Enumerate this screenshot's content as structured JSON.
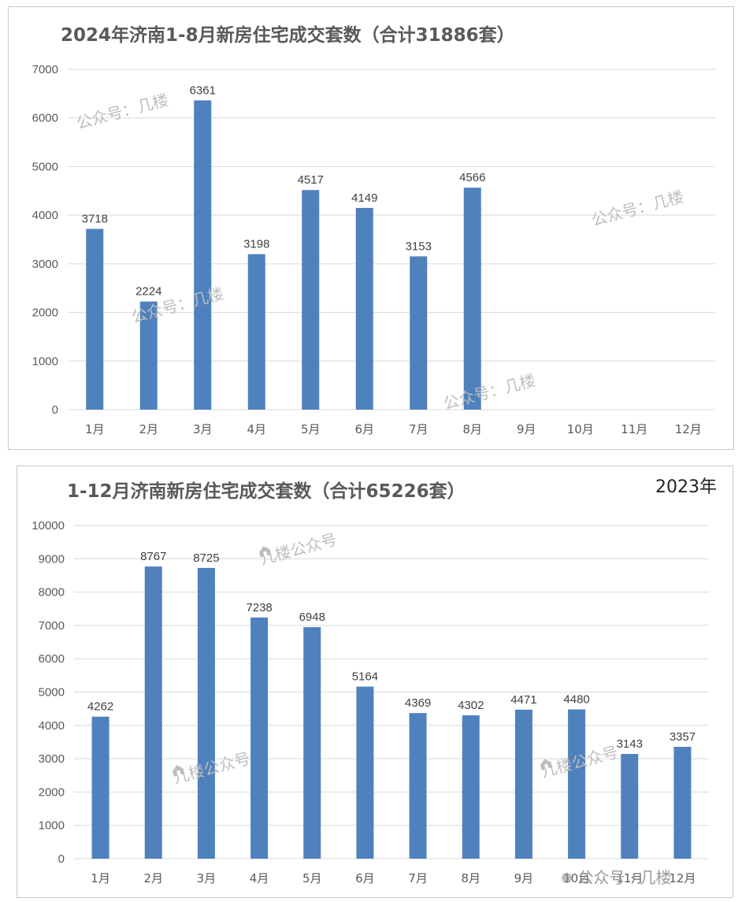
{
  "colors": {
    "bar": "#4f81bd",
    "grid": "#d9d9d9",
    "axis_text": "#595959",
    "label_text": "#404040",
    "watermark": "#bdbdbd"
  },
  "watermarks": {
    "gongzhonghao_jilou": "公众号：几楼",
    "jilou_gongzhonghao": "几楼公众号",
    "wechat_gongzhonghao_jilou": "公众号 · 几楼"
  },
  "panel_2023": {
    "year_tag": "2023年"
  },
  "chart_data": [
    {
      "type": "bar",
      "title": "2024年济南1-8月新房住宅成交套数（合计31886套）",
      "categories": [
        "1月",
        "2月",
        "3月",
        "4月",
        "5月",
        "6月",
        "7月",
        "8月",
        "9月",
        "10月",
        "11月",
        "12月"
      ],
      "values": [
        3718,
        2224,
        6361,
        3198,
        4517,
        4149,
        3153,
        4566,
        null,
        null,
        null,
        null
      ],
      "ylim": [
        0,
        7000
      ],
      "yticks": [
        0,
        1000,
        2000,
        3000,
        4000,
        5000,
        6000,
        7000
      ],
      "grid": true,
      "data_labels": true
    },
    {
      "type": "bar",
      "title": "1-12月济南新房住宅成交套数（合计65226套）",
      "categories": [
        "1月",
        "2月",
        "3月",
        "4月",
        "5月",
        "6月",
        "7月",
        "8月",
        "9月",
        "10月",
        "11月",
        "12月"
      ],
      "values": [
        4262,
        8767,
        8725,
        7238,
        6948,
        5164,
        4369,
        4302,
        4471,
        4480,
        3143,
        3357
      ],
      "ylim": [
        0,
        10000
      ],
      "yticks": [
        0,
        1000,
        2000,
        3000,
        4000,
        5000,
        6000,
        7000,
        8000,
        9000,
        10000
      ],
      "grid": true,
      "data_labels": true
    }
  ]
}
